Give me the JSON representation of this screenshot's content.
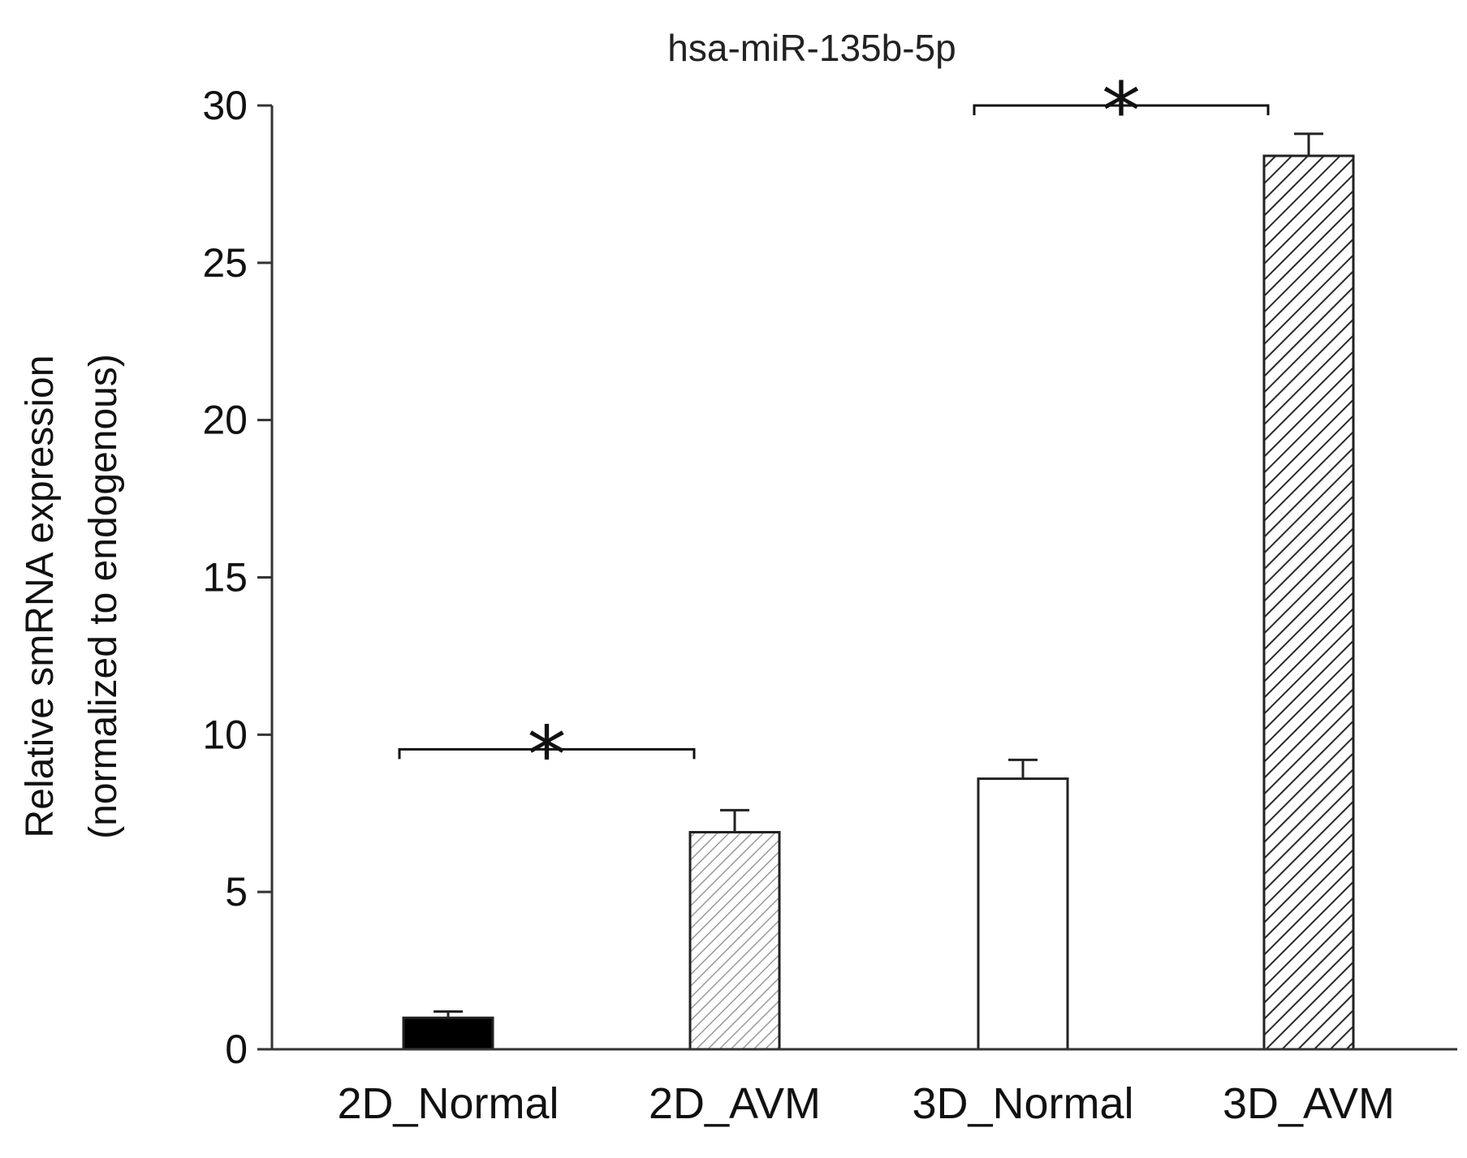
{
  "chart_data": {
    "type": "bar",
    "title": "hsa-miR-135b-5p",
    "ylabel_line1": "Relative smRNA expression",
    "ylabel_line2": "(normalized to endogenous)",
    "xlabel": "",
    "ylim": [
      0,
      30
    ],
    "yticks": [
      0,
      5,
      10,
      15,
      20,
      25,
      30
    ],
    "ytick_labels": [
      "0",
      "5",
      "10",
      "15",
      "20",
      "25",
      "30"
    ],
    "categories": [
      "2D_Normal",
      "2D_AVM",
      "3D_Normal",
      "3D_AVM"
    ],
    "values": [
      1.0,
      6.9,
      8.6,
      28.4
    ],
    "errors": [
      0.2,
      0.7,
      0.6,
      0.7
    ],
    "fills": [
      "solid-black",
      "light-hatch",
      "white",
      "dark-hatch"
    ],
    "significance": [
      {
        "from": "2D_Normal",
        "to": "2D_AVM",
        "label": "*"
      },
      {
        "from": "3D_Normal",
        "to": "3D_AVM",
        "label": "*"
      }
    ],
    "grid": false,
    "legend": "none"
  }
}
